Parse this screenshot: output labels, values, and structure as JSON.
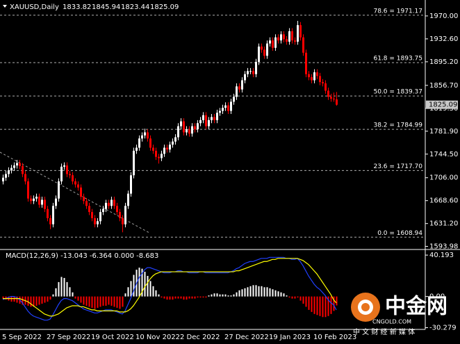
{
  "chart_data": [
    {
      "type": "candlestick",
      "title": "XAUUSD,Daily",
      "categories": [
        "5 Sep 2022",
        null,
        null,
        null,
        null,
        null,
        null,
        null,
        null,
        null,
        null,
        null,
        null,
        null,
        null,
        null,
        "27 Sep 2022",
        null,
        null,
        null,
        null,
        null,
        null,
        null,
        null,
        null,
        null,
        null,
        null,
        null,
        null,
        null,
        "19 Oct 2022",
        null,
        null,
        null,
        null,
        null,
        null,
        null,
        null,
        null,
        null,
        null,
        null,
        null,
        null,
        null,
        "10 Nov 2022",
        null,
        null,
        null,
        null,
        null,
        null,
        null,
        null,
        null,
        null,
        null,
        null,
        null,
        null,
        null,
        "2 Dec 2022",
        null,
        null,
        null,
        null,
        null,
        null,
        null,
        null,
        null,
        null,
        null,
        null,
        null,
        null,
        null,
        "27 Dec 2022",
        null,
        null,
        null,
        null,
        null,
        null,
        null,
        null,
        null,
        null,
        null,
        null,
        null,
        null,
        null,
        "19 Jan 2023",
        null,
        null,
        null,
        null,
        null,
        null,
        null,
        null,
        null,
        null,
        null,
        null,
        null,
        null,
        null,
        "10 Feb 2023",
        null,
        null,
        null,
        null,
        null,
        null,
        null,
        null
      ],
      "ohlc": [
        [
          1700,
          1711,
          1695,
          1706
        ],
        [
          1706,
          1717,
          1701,
          1712
        ],
        [
          1712,
          1723,
          1707,
          1718
        ],
        [
          1718,
          1727,
          1713,
          1722
        ],
        [
          1722,
          1731,
          1717,
          1726
        ],
        [
          1726,
          1735,
          1721,
          1730
        ],
        [
          1730,
          1735,
          1720,
          1725
        ],
        [
          1725,
          1730,
          1707,
          1712
        ],
        [
          1712,
          1717,
          1695,
          1700
        ],
        [
          1700,
          1705,
          1667,
          1672
        ],
        [
          1672,
          1677,
          1663,
          1668
        ],
        [
          1668,
          1677,
          1663,
          1672
        ],
        [
          1672,
          1680,
          1667,
          1675
        ],
        [
          1675,
          1680,
          1657,
          1662
        ],
        [
          1662,
          1675,
          1657,
          1670
        ],
        [
          1670,
          1675,
          1650,
          1655
        ],
        [
          1655,
          1660,
          1635,
          1640
        ],
        [
          1640,
          1645,
          1622,
          1630
        ],
        [
          1630,
          1665,
          1625,
          1660
        ],
        [
          1660,
          1677,
          1655,
          1672
        ],
        [
          1672,
          1705,
          1667,
          1700
        ],
        [
          1700,
          1729,
          1695,
          1724
        ],
        [
          1724,
          1731,
          1719,
          1726
        ],
        [
          1726,
          1731,
          1707,
          1712
        ],
        [
          1712,
          1717,
          1705,
          1710
        ],
        [
          1710,
          1715,
          1695,
          1700
        ],
        [
          1700,
          1705,
          1690,
          1695
        ],
        [
          1695,
          1700,
          1685,
          1690
        ],
        [
          1690,
          1695,
          1670,
          1675
        ],
        [
          1675,
          1680,
          1663,
          1668
        ],
        [
          1668,
          1673,
          1655,
          1660
        ],
        [
          1660,
          1665,
          1645,
          1650
        ],
        [
          1650,
          1655,
          1635,
          1640
        ],
        [
          1640,
          1645,
          1625,
          1630
        ],
        [
          1630,
          1640,
          1625,
          1635
        ],
        [
          1635,
          1655,
          1630,
          1650
        ],
        [
          1650,
          1660,
          1645,
          1655
        ],
        [
          1655,
          1670,
          1650,
          1665
        ],
        [
          1665,
          1670,
          1655,
          1660
        ],
        [
          1660,
          1675,
          1655,
          1670
        ],
        [
          1670,
          1675,
          1655,
          1660
        ],
        [
          1660,
          1665,
          1645,
          1650
        ],
        [
          1650,
          1655,
          1635,
          1640
        ],
        [
          1640,
          1645,
          1617,
          1630
        ],
        [
          1630,
          1665,
          1625,
          1660
        ],
        [
          1660,
          1685,
          1655,
          1680
        ],
        [
          1680,
          1715,
          1675,
          1710
        ],
        [
          1710,
          1755,
          1705,
          1750
        ],
        [
          1750,
          1760,
          1745,
          1755
        ],
        [
          1755,
          1775,
          1750,
          1770
        ],
        [
          1770,
          1780,
          1765,
          1775
        ],
        [
          1775,
          1786,
          1770,
          1780
        ],
        [
          1780,
          1785,
          1765,
          1770
        ],
        [
          1770,
          1775,
          1750,
          1755
        ],
        [
          1755,
          1760,
          1745,
          1750
        ],
        [
          1750,
          1755,
          1735,
          1740
        ],
        [
          1740,
          1745,
          1729,
          1738
        ],
        [
          1738,
          1750,
          1733,
          1745
        ],
        [
          1745,
          1760,
          1740,
          1755
        ],
        [
          1755,
          1760,
          1747,
          1752
        ],
        [
          1752,
          1765,
          1747,
          1760
        ],
        [
          1760,
          1770,
          1755,
          1765
        ],
        [
          1765,
          1777,
          1760,
          1772
        ],
        [
          1772,
          1795,
          1767,
          1790
        ],
        [
          1790,
          1803,
          1785,
          1798
        ],
        [
          1798,
          1803,
          1775,
          1780
        ],
        [
          1780,
          1790,
          1775,
          1785
        ],
        [
          1785,
          1790,
          1773,
          1778
        ],
        [
          1778,
          1795,
          1773,
          1790
        ],
        [
          1790,
          1795,
          1780,
          1785
        ],
        [
          1785,
          1800,
          1780,
          1795
        ],
        [
          1795,
          1805,
          1790,
          1800
        ],
        [
          1800,
          1813,
          1795,
          1808
        ],
        [
          1808,
          1813,
          1785,
          1790
        ],
        [
          1790,
          1805,
          1785,
          1800
        ],
        [
          1800,
          1810,
          1795,
          1805
        ],
        [
          1805,
          1810,
          1795,
          1800
        ],
        [
          1800,
          1817,
          1795,
          1812
        ],
        [
          1812,
          1820,
          1807,
          1815
        ],
        [
          1815,
          1825,
          1810,
          1820
        ],
        [
          1820,
          1829,
          1815,
          1824
        ],
        [
          1824,
          1829,
          1810,
          1815
        ],
        [
          1815,
          1835,
          1810,
          1830
        ],
        [
          1830,
          1843,
          1825,
          1838
        ],
        [
          1838,
          1860,
          1833,
          1855
        ],
        [
          1855,
          1860,
          1845,
          1850
        ],
        [
          1850,
          1870,
          1845,
          1865
        ],
        [
          1865,
          1880,
          1860,
          1875
        ],
        [
          1875,
          1885,
          1870,
          1880
        ],
        [
          1880,
          1885,
          1875,
          1880
        ],
        [
          1880,
          1885,
          1870,
          1875
        ],
        [
          1875,
          1900,
          1870,
          1895
        ],
        [
          1895,
          1925,
          1890,
          1920
        ],
        [
          1920,
          1925,
          1910,
          1915
        ],
        [
          1915,
          1920,
          1900,
          1905
        ],
        [
          1905,
          1930,
          1900,
          1925
        ],
        [
          1925,
          1935,
          1920,
          1930
        ],
        [
          1930,
          1935,
          1913,
          1918
        ],
        [
          1918,
          1940,
          1913,
          1935
        ],
        [
          1935,
          1940,
          1925,
          1930
        ],
        [
          1930,
          1945,
          1925,
          1940
        ],
        [
          1940,
          1945,
          1927,
          1932
        ],
        [
          1932,
          1937,
          1923,
          1928
        ],
        [
          1928,
          1950,
          1923,
          1945
        ],
        [
          1945,
          1950,
          1925,
          1930
        ],
        [
          1930,
          1935,
          1923,
          1928
        ],
        [
          1928,
          1962,
          1923,
          1955
        ],
        [
          1955,
          1960,
          1930,
          1935
        ],
        [
          1935,
          1940,
          1905,
          1910
        ],
        [
          1910,
          1915,
          1870,
          1875
        ],
        [
          1875,
          1880,
          1865,
          1870
        ],
        [
          1870,
          1875,
          1860,
          1865
        ],
        [
          1865,
          1883,
          1860,
          1878
        ],
        [
          1878,
          1883,
          1867,
          1872
        ],
        [
          1872,
          1877,
          1857,
          1862
        ],
        [
          1862,
          1867,
          1855,
          1860
        ],
        [
          1860,
          1865,
          1843,
          1848
        ],
        [
          1848,
          1853,
          1833,
          1838
        ],
        [
          1838,
          1843,
          1830,
          1835
        ],
        [
          1835,
          1845,
          1830,
          1833.82
        ],
        [
          1833.82,
          1845.94,
          1823.44,
          1825.09
        ]
      ],
      "up_color": "#ffffff",
      "down_color": "#ff0000",
      "ylim": [
        1590,
        1996
      ],
      "yticks": [
        {
          "value": 1970,
          "label": "1970.00"
        },
        {
          "value": 1932.6,
          "label": "1932.60"
        },
        {
          "value": 1895.2,
          "label": "1895.20"
        },
        {
          "value": 1856.7,
          "label": "1856.70"
        },
        {
          "value": 1819.3,
          "label": "1819.30"
        },
        {
          "value": 1781.9,
          "label": "1781.90"
        },
        {
          "value": 1744.5,
          "label": "1744.50"
        },
        {
          "value": 1706,
          "label": "1706.00"
        },
        {
          "value": 1668.6,
          "label": "1668.60"
        },
        {
          "value": 1631.2,
          "label": "1631.20"
        },
        1593.98
      ],
      "fib_color": "#b0b0b0",
      "fib_levels": [
        {
          "value": 1971.17,
          "label": "78.6 = 1971.17"
        },
        {
          "value": 1893.75,
          "label": "61.8 = 1893.75"
        },
        {
          "value": 1839.37,
          "label": "50.0 = 1839.37"
        },
        {
          "value": 1784.99,
          "label": "38.2 = 1784.99"
        },
        {
          "value": 1717.7,
          "label": "23.6 = 1717.70"
        },
        {
          "value": 1608.94,
          "label": "0.0 = 1608.94"
        }
      ]
    },
    {
      "type": "macd",
      "title": "MACD(12,26,9) -13.043 -6.364 0.000 -8.683",
      "ylim": [
        -31.3,
        44.3
      ],
      "yticks": [
        40.193,
        {
          "value": 0,
          "label": "0.00"
        },
        -30.279
      ],
      "histogram": {
        "up_color": "#ffffff",
        "down_color": "#ff0000",
        "values": [
          -2,
          -3,
          -4,
          -5,
          -5,
          -6,
          -7,
          -8,
          -8,
          -9,
          -10,
          -10,
          -9,
          -8,
          -7,
          -6,
          -5,
          -3,
          2,
          8,
          14,
          19,
          18,
          14,
          9,
          4,
          -2,
          -4,
          -6,
          -8,
          -9,
          -10,
          -11,
          -12,
          -11,
          -10,
          -9,
          -9,
          -8,
          -9,
          -10,
          -11,
          -12,
          -10,
          3,
          9,
          15,
          21,
          26,
          28,
          27,
          24,
          20,
          15,
          10,
          6,
          2,
          -1,
          -2,
          -3,
          -3,
          -3,
          -2,
          -2,
          -2,
          -3,
          -3,
          -2,
          -2,
          -2,
          -1,
          -1,
          -1,
          -1,
          1,
          2,
          3,
          3,
          2,
          2,
          2,
          1,
          1,
          2,
          4,
          6,
          7,
          8,
          9,
          10,
          11,
          11,
          10,
          10,
          9,
          9,
          8,
          7,
          6,
          5,
          4,
          3,
          1,
          -1,
          -2,
          -2,
          -1,
          -4,
          -7,
          -10,
          -13,
          -15,
          -17,
          -18,
          -19,
          -20,
          -20,
          -19,
          -17,
          -14,
          -8.683
        ]
      },
      "lines": [
        {
          "color": "#2040ff",
          "values": [
            -3,
            -2,
            -1,
            0,
            0,
            -1,
            -3,
            -6,
            -10,
            -14,
            -17,
            -19,
            -20,
            -21,
            -22,
            -23,
            -23,
            -22,
            -18,
            -13,
            -8,
            -4,
            -2,
            -2,
            -3,
            -4,
            -6,
            -8,
            -10,
            -12,
            -13,
            -14,
            -15,
            -16,
            -16,
            -15,
            -14,
            -13,
            -13,
            -13,
            -14,
            -15,
            -16,
            -17,
            -14,
            -8,
            -2,
            5,
            12,
            18,
            22,
            26,
            28,
            28,
            27,
            26,
            25,
            24,
            23,
            23,
            23,
            24,
            24,
            25,
            25,
            24,
            24,
            23,
            23,
            23,
            23,
            24,
            24,
            23,
            23,
            23,
            23,
            23,
            23,
            23,
            23,
            23,
            24,
            25,
            27,
            28,
            30,
            32,
            33,
            34,
            34,
            35,
            36,
            37,
            37,
            37,
            38,
            38,
            38,
            38,
            38,
            38,
            37,
            37,
            36,
            36,
            37,
            34,
            30,
            25,
            20,
            16,
            12,
            9,
            7,
            4,
            1,
            -3,
            -6,
            -8,
            -13.043
          ]
        },
        {
          "color": "#ffff00",
          "values": [
            -2,
            -2,
            -2,
            -2,
            -2,
            -2,
            -2,
            -3,
            -4,
            -5,
            -7,
            -9,
            -11,
            -13,
            -15,
            -17,
            -18,
            -19,
            -19,
            -18,
            -17,
            -15,
            -13,
            -11,
            -10,
            -9,
            -9,
            -9,
            -10,
            -10,
            -11,
            -12,
            -13,
            -13,
            -14,
            -14,
            -14,
            -14,
            -14,
            -14,
            -14,
            -14,
            -15,
            -15,
            -15,
            -14,
            -12,
            -9,
            -5,
            -1,
            4,
            9,
            13,
            17,
            20,
            22,
            23,
            24,
            24,
            24,
            24,
            24,
            24,
            24,
            24,
            24,
            24,
            24,
            24,
            24,
            24,
            24,
            24,
            24,
            24,
            24,
            24,
            24,
            24,
            24,
            24,
            24,
            24,
            24,
            25,
            25,
            26,
            27,
            28,
            29,
            30,
            31,
            32,
            33,
            34,
            34,
            35,
            36,
            36,
            37,
            37,
            37,
            37,
            37,
            37,
            37,
            37,
            36,
            35,
            33,
            31,
            28,
            25,
            22,
            18,
            14,
            10,
            6,
            2,
            -3,
            -6.364
          ]
        }
      ]
    }
  ],
  "watermark": {
    "name": "中金网",
    "site": "CNGOLD.COM",
    "tagline": "中 文 财 经 新 媒 体"
  }
}
